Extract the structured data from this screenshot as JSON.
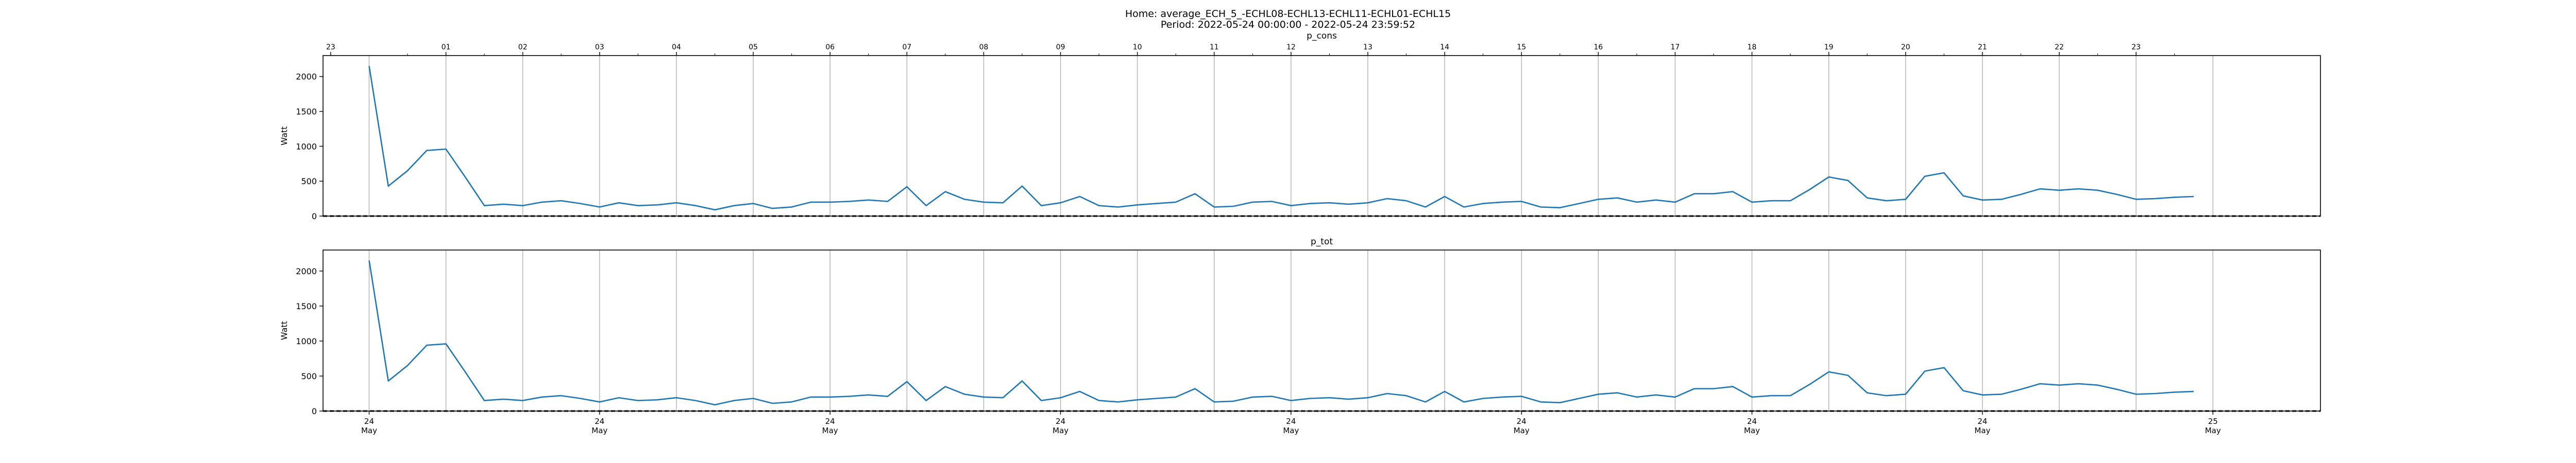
{
  "figure": {
    "title": "Home: average_ECH_5_-ECHL08-ECHL13-ECHL11-ECHL01-ECHL15",
    "period": "Period: 2022-05-24 00:00:00 - 2022-05-24 23:59:52"
  },
  "chart_data": [
    {
      "type": "line",
      "title": "p_cons",
      "ylabel": "Watt",
      "xlabel": "",
      "ylim": [
        0,
        2300
      ],
      "yticks": [
        0,
        500,
        1000,
        1500,
        2000
      ],
      "xlim": [
        -0.6,
        25.4
      ],
      "top_hour_ticks": [
        "23",
        "01",
        "02",
        "03",
        "04",
        "05",
        "06",
        "07",
        "08",
        "09",
        "10",
        "11",
        "12",
        "13",
        "14",
        "15",
        "16",
        "17",
        "18",
        "19",
        "20",
        "21",
        "22",
        "23"
      ],
      "grid": "vertical at each hour",
      "baseline": "dashed black line at 0",
      "series": [
        {
          "color": "#1f77b4",
          "x": [
            0.0,
            0.25,
            0.5,
            0.75,
            1.0,
            1.25,
            1.5,
            1.75,
            2.0,
            2.25,
            2.5,
            2.75,
            3.0,
            3.25,
            3.5,
            3.75,
            4.0,
            4.25,
            4.5,
            4.75,
            5.0,
            5.25,
            5.5,
            5.75,
            6.0,
            6.25,
            6.5,
            6.75,
            7.0,
            7.25,
            7.5,
            7.75,
            8.0,
            8.25,
            8.5,
            8.75,
            9.0,
            9.25,
            9.5,
            9.75,
            10.0,
            10.25,
            10.5,
            10.75,
            11.0,
            11.25,
            11.5,
            11.75,
            12.0,
            12.25,
            12.5,
            12.75,
            13.0,
            13.25,
            13.5,
            13.75,
            14.0,
            14.25,
            14.5,
            14.75,
            15.0,
            15.25,
            15.5,
            15.75,
            16.0,
            16.25,
            16.5,
            16.75,
            17.0,
            17.25,
            17.5,
            17.75,
            18.0,
            18.25,
            18.5,
            18.75,
            19.0,
            19.25,
            19.5,
            19.75,
            20.0,
            20.25,
            20.5,
            20.75,
            21.0,
            21.25,
            21.5,
            21.75,
            22.0,
            22.25,
            22.5,
            22.75,
            23.0,
            23.25,
            23.5,
            23.75
          ],
          "y": [
            2150,
            430,
            650,
            940,
            960,
            560,
            150,
            170,
            150,
            200,
            220,
            180,
            130,
            190,
            150,
            160,
            190,
            150,
            90,
            150,
            180,
            110,
            130,
            200,
            200,
            210,
            230,
            210,
            420,
            150,
            350,
            240,
            200,
            190,
            430,
            150,
            190,
            280,
            150,
            130,
            160,
            180,
            200,
            320,
            130,
            140,
            200,
            210,
            150,
            180,
            190,
            170,
            190,
            250,
            220,
            130,
            280,
            130,
            180,
            200,
            210,
            130,
            120,
            180,
            240,
            260,
            200,
            230,
            200,
            320,
            320,
            350,
            200,
            220,
            220,
            380,
            560,
            510,
            260,
            220,
            240,
            570,
            620,
            290,
            230,
            240,
            310,
            390,
            370,
            390,
            370,
            310,
            240,
            250,
            270,
            280
          ]
        }
      ]
    },
    {
      "type": "line",
      "title": "p_tot",
      "ylabel": "Watt",
      "xlabel": "",
      "ylim": [
        0,
        2300
      ],
      "yticks": [
        0,
        500,
        1000,
        1500,
        2000
      ],
      "xlim": [
        -0.6,
        25.4
      ],
      "x_tick_labels": [
        {
          "x": 0,
          "day": "24",
          "month": "May"
        },
        {
          "x": 3,
          "day": "24",
          "month": "May"
        },
        {
          "x": 6,
          "day": "24",
          "month": "May"
        },
        {
          "x": 9,
          "day": "24",
          "month": "May"
        },
        {
          "x": 12,
          "day": "24",
          "month": "May"
        },
        {
          "x": 15,
          "day": "24",
          "month": "May"
        },
        {
          "x": 18,
          "day": "24",
          "month": "May"
        },
        {
          "x": 21,
          "day": "24",
          "month": "May"
        },
        {
          "x": 24,
          "day": "25",
          "month": "May"
        }
      ],
      "grid": "vertical at each hour",
      "baseline": "dashed black line at 0",
      "series": [
        {
          "color": "#1f77b4",
          "x": [
            0.0,
            0.25,
            0.5,
            0.75,
            1.0,
            1.25,
            1.5,
            1.75,
            2.0,
            2.25,
            2.5,
            2.75,
            3.0,
            3.25,
            3.5,
            3.75,
            4.0,
            4.25,
            4.5,
            4.75,
            5.0,
            5.25,
            5.5,
            5.75,
            6.0,
            6.25,
            6.5,
            6.75,
            7.0,
            7.25,
            7.5,
            7.75,
            8.0,
            8.25,
            8.5,
            8.75,
            9.0,
            9.25,
            9.5,
            9.75,
            10.0,
            10.25,
            10.5,
            10.75,
            11.0,
            11.25,
            11.5,
            11.75,
            12.0,
            12.25,
            12.5,
            12.75,
            13.0,
            13.25,
            13.5,
            13.75,
            14.0,
            14.25,
            14.5,
            14.75,
            15.0,
            15.25,
            15.5,
            15.75,
            16.0,
            16.25,
            16.5,
            16.75,
            17.0,
            17.25,
            17.5,
            17.75,
            18.0,
            18.25,
            18.5,
            18.75,
            19.0,
            19.25,
            19.5,
            19.75,
            20.0,
            20.25,
            20.5,
            20.75,
            21.0,
            21.25,
            21.5,
            21.75,
            22.0,
            22.25,
            22.5,
            22.75,
            23.0,
            23.25,
            23.5,
            23.75
          ],
          "y": [
            2150,
            430,
            650,
            940,
            960,
            560,
            150,
            170,
            150,
            200,
            220,
            180,
            130,
            190,
            150,
            160,
            190,
            150,
            90,
            150,
            180,
            110,
            130,
            200,
            200,
            210,
            230,
            210,
            420,
            150,
            350,
            240,
            200,
            190,
            430,
            150,
            190,
            280,
            150,
            130,
            160,
            180,
            200,
            320,
            130,
            140,
            200,
            210,
            150,
            180,
            190,
            170,
            190,
            250,
            220,
            130,
            280,
            130,
            180,
            200,
            210,
            130,
            120,
            180,
            240,
            260,
            200,
            230,
            200,
            320,
            320,
            350,
            200,
            220,
            220,
            380,
            560,
            510,
            260,
            220,
            240,
            570,
            620,
            290,
            230,
            240,
            310,
            390,
            370,
            390,
            370,
            310,
            240,
            250,
            270,
            280
          ]
        }
      ]
    }
  ]
}
